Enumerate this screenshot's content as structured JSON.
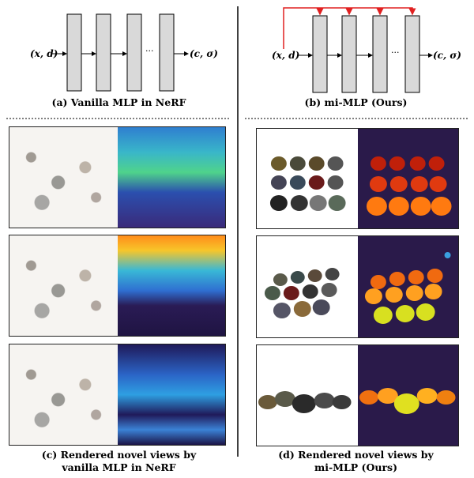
{
  "panel_a": {
    "input": "(x, d)",
    "dots": "···",
    "output": "(c, σ)",
    "caption": "(a) Vanilla MLP in NeRF"
  },
  "panel_b": {
    "input": "(x, d)",
    "dots": "···",
    "output": "(c, σ)",
    "caption": "(b) mi-MLP (Ours)"
  },
  "panel_c": {
    "caption_line1": "(c) Rendered novel views by",
    "caption_line2": "vanilla MLP in NeRF"
  },
  "panel_d": {
    "caption_line1": "(d) Rendered novel views by",
    "caption_line2": "mi-MLP (Ours)"
  },
  "colors": {
    "layer_fill": "#d9d9d9",
    "skip_arrow": "#e02020",
    "depth_background": "#2a1a4a"
  }
}
